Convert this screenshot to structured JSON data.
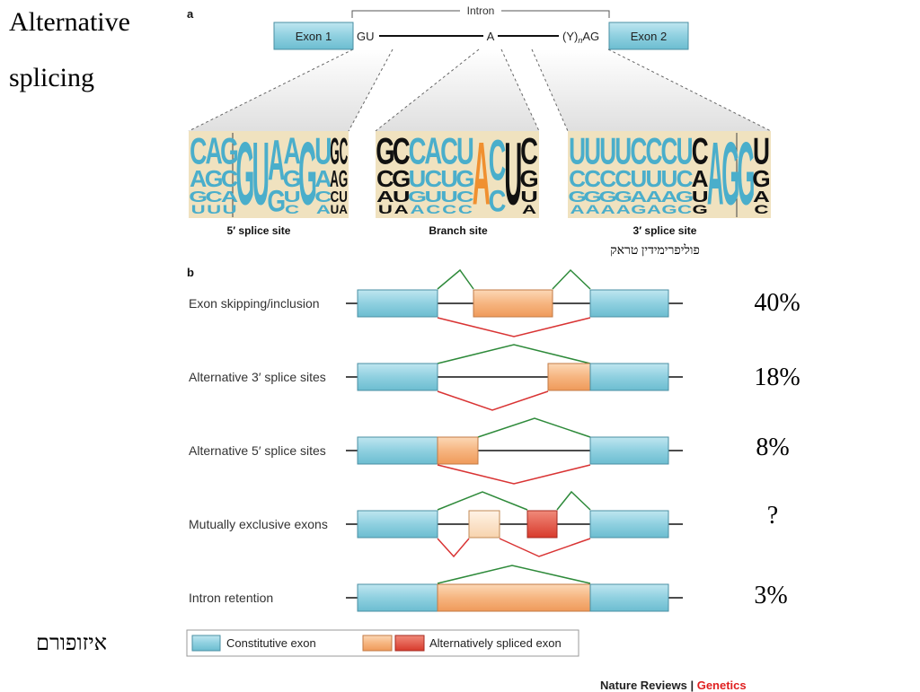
{
  "slide": {
    "title_line1": "Alternative",
    "title_line2": "splicing",
    "isoform_label": "איזופורם",
    "polypyrimidine_label": "פוליפרימידין טראק"
  },
  "figure_a": {
    "panel_letter": "a",
    "intron_label": "Intron",
    "exon1_label": "Exon 1",
    "exon2_label": "Exon 2",
    "gu_label": "GU",
    "a_label": "A",
    "ypolyag_prefix": "(Y)",
    "ypolyag_sub": "n",
    "ypolyag_suffix": "AG",
    "site5_label": "5′ splice site",
    "branch_label": "Branch site",
    "site3_label": "3′ splice site",
    "logo5": [
      {
        "top": "C",
        "mid": "A",
        "low": "G",
        "bot": "U",
        "color": "blue"
      },
      {
        "top": "A",
        "mid": "G",
        "low": "C",
        "bot": "U",
        "color": "blue"
      },
      {
        "top": "G",
        "mid": "C",
        "low": "A",
        "bot": "U",
        "color": "blue"
      },
      {
        "top": "G",
        "mid": "",
        "low": "",
        "bot": "",
        "color": "blue"
      },
      {
        "top": "U",
        "mid": "",
        "low": "",
        "bot": "",
        "color": "blue"
      },
      {
        "top": "A",
        "mid": "G",
        "low": "",
        "bot": "",
        "color": "blue"
      },
      {
        "top": "A",
        "mid": "G",
        "low": "U",
        "bot": "C",
        "color": "blue"
      },
      {
        "top": "G",
        "mid": "",
        "low": "",
        "bot": "",
        "color": "blue"
      },
      {
        "top": "U",
        "mid": "A",
        "low": "C",
        "bot": "A",
        "color": "blue"
      },
      {
        "top": "GC",
        "mid": "AG",
        "low": "CU",
        "bot": "UA",
        "color": "black"
      }
    ],
    "logo_branch": [
      {
        "top": "G",
        "mid": "C",
        "low": "A",
        "bot": "U",
        "color": "black"
      },
      {
        "top": "C",
        "mid": "G",
        "low": "U",
        "bot": "A",
        "color": "black"
      },
      {
        "top": "C",
        "mid": "U",
        "low": "G",
        "bot": "A",
        "color": "blue"
      },
      {
        "top": "A",
        "mid": "C",
        "low": "U",
        "bot": "C",
        "color": "blue"
      },
      {
        "top": "C",
        "mid": "U",
        "low": "U",
        "bot": "C",
        "color": "blue"
      },
      {
        "top": "U",
        "mid": "G",
        "low": "C",
        "bot": "C",
        "color": "blue"
      },
      {
        "top": "A",
        "mid": "",
        "low": "",
        "bot": "",
        "color": "orange"
      },
      {
        "top": "C",
        "mid": "C",
        "low": "",
        "bot": "",
        "color": "blue"
      },
      {
        "top": "U",
        "mid": "",
        "low": "",
        "bot": "",
        "color": "black"
      },
      {
        "top": "C",
        "mid": "G",
        "low": "U",
        "bot": "A",
        "color": "black"
      }
    ],
    "logo3": [
      {
        "top": "U",
        "mid": "C",
        "low": "G",
        "bot": "A",
        "color": "blue"
      },
      {
        "top": "U",
        "mid": "C",
        "low": "G",
        "bot": "A",
        "color": "blue"
      },
      {
        "top": "U",
        "mid": "C",
        "low": "G",
        "bot": "A",
        "color": "blue"
      },
      {
        "top": "U",
        "mid": "C",
        "low": "G",
        "bot": "A",
        "color": "blue"
      },
      {
        "top": "C",
        "mid": "U",
        "low": "A",
        "bot": "G",
        "color": "blue"
      },
      {
        "top": "C",
        "mid": "U",
        "low": "A",
        "bot": "A",
        "color": "blue"
      },
      {
        "top": "C",
        "mid": "U",
        "low": "A",
        "bot": "G",
        "color": "blue"
      },
      {
        "top": "U",
        "mid": "C",
        "low": "G",
        "bot": "C",
        "color": "blue"
      },
      {
        "top": "C",
        "mid": "A",
        "low": "U",
        "bot": "G",
        "color": "black"
      },
      {
        "top": "A",
        "mid": "",
        "low": "",
        "bot": "",
        "color": "blue"
      },
      {
        "top": "G",
        "mid": "",
        "low": "",
        "bot": "",
        "color": "blue"
      },
      {
        "top": "G",
        "mid": "",
        "low": "",
        "bot": "",
        "color": "blue"
      },
      {
        "top": "U",
        "mid": "G",
        "low": "A",
        "bot": "C",
        "color": "black"
      }
    ]
  },
  "figure_b": {
    "panel_letter": "b",
    "rows": [
      {
        "label": "Exon skipping/inclusion",
        "percent": "40%"
      },
      {
        "label": "Alternative 3′ splice sites",
        "percent": "18%"
      },
      {
        "label": "Alternative 5′ splice sites",
        "percent": "8%"
      },
      {
        "label": "Mutually exclusive exons",
        "percent": "?"
      },
      {
        "label": "Intron retention",
        "percent": "3%"
      }
    ],
    "legend_constitutive": "Constitutive exon",
    "legend_alternative": "Alternatively spliced exon"
  },
  "credit": {
    "journal": "Nature Reviews",
    "separator": " | ",
    "section": "Genetics"
  },
  "colors": {
    "exon_blue": "#8fd0e0",
    "exon_orange": "#f6b580",
    "exon_red": "#e24a3a",
    "green_line": "#2e8a3a",
    "red_line": "#d93434",
    "logo_bg": "#f0e2bf",
    "logo_blue": "#4aaecb",
    "logo_orange": "#f09030"
  }
}
